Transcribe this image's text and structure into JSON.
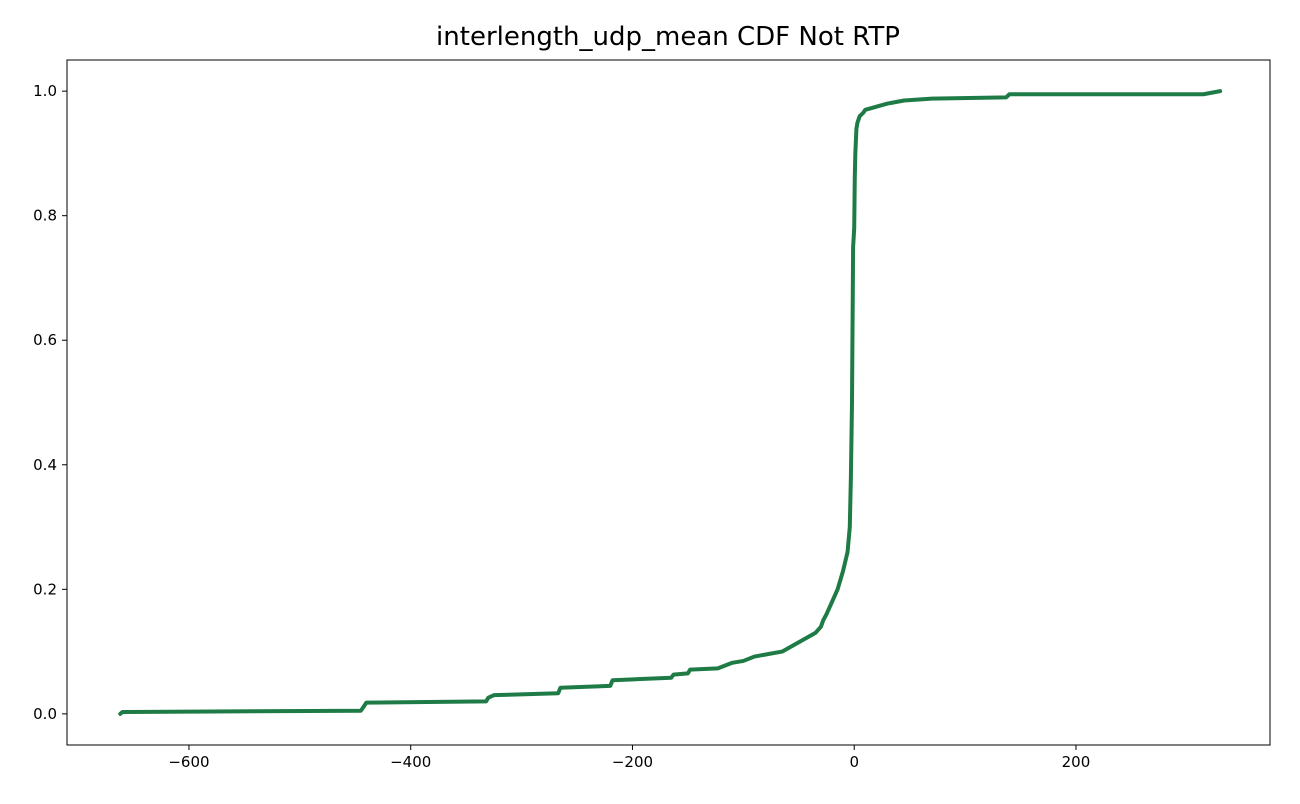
{
  "chart_data": {
    "type": "line",
    "title": "interlength_udp_mean CDF Not RTP",
    "xlabel": "",
    "ylabel": "",
    "xlim": [
      -710,
      375
    ],
    "ylim": [
      -0.05,
      1.05
    ],
    "x_ticks": [
      -600,
      -400,
      -200,
      0,
      200
    ],
    "x_tick_labels": [
      "−600",
      "−400",
      "−200",
      "0",
      "200"
    ],
    "y_ticks": [
      0.0,
      0.2,
      0.4,
      0.6,
      0.8,
      1.0
    ],
    "y_tick_labels": [
      "0.0",
      "0.2",
      "0.4",
      "0.6",
      "0.8",
      "1.0"
    ],
    "grid": false,
    "series": [
      {
        "color": "#1e7b46",
        "x": [
          -662,
          -660,
          -445,
          -443,
          -440,
          -332,
          -330,
          -325,
          -267,
          -265,
          -220,
          -218,
          -165,
          -163,
          -150,
          -148,
          -123,
          -110,
          -100,
          -90,
          -65,
          -50,
          -35,
          -30,
          -28,
          -25,
          -20,
          -15,
          -10,
          -6,
          -4,
          -3,
          -2,
          -1,
          0,
          0.5,
          1,
          1.5,
          2,
          3,
          5,
          8,
          10,
          20,
          30,
          45,
          70,
          137,
          140,
          315,
          330
        ],
        "y": [
          0.0,
          0.003,
          0.005,
          0.01,
          0.018,
          0.02,
          0.026,
          0.03,
          0.033,
          0.042,
          0.045,
          0.054,
          0.058,
          0.063,
          0.065,
          0.071,
          0.073,
          0.082,
          0.085,
          0.092,
          0.1,
          0.115,
          0.13,
          0.14,
          0.15,
          0.16,
          0.18,
          0.2,
          0.23,
          0.26,
          0.3,
          0.38,
          0.5,
          0.75,
          0.78,
          0.86,
          0.9,
          0.92,
          0.94,
          0.95,
          0.96,
          0.965,
          0.97,
          0.975,
          0.98,
          0.985,
          0.988,
          0.99,
          0.995,
          0.995,
          1.0
        ]
      }
    ]
  }
}
